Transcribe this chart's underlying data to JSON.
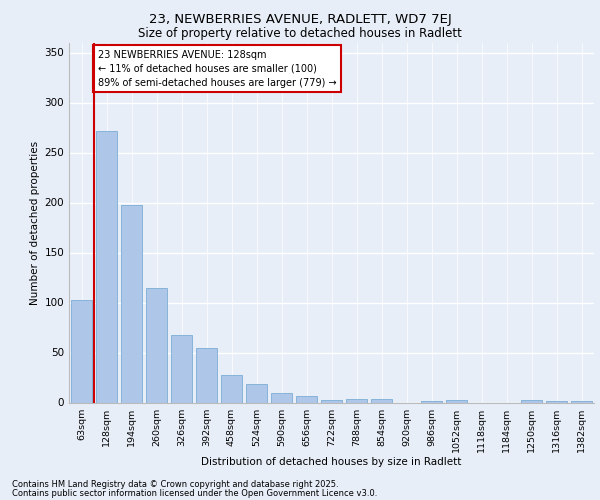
{
  "title1": "23, NEWBERRIES AVENUE, RADLETT, WD7 7EJ",
  "title2": "Size of property relative to detached houses in Radlett",
  "xlabel": "Distribution of detached houses by size in Radlett",
  "ylabel": "Number of detached properties",
  "categories": [
    "63sqm",
    "128sqm",
    "194sqm",
    "260sqm",
    "326sqm",
    "392sqm",
    "458sqm",
    "524sqm",
    "590sqm",
    "656sqm",
    "722sqm",
    "788sqm",
    "854sqm",
    "920sqm",
    "986sqm",
    "1052sqm",
    "1118sqm",
    "1184sqm",
    "1250sqm",
    "1316sqm",
    "1382sqm"
  ],
  "values": [
    103,
    272,
    198,
    115,
    68,
    55,
    28,
    19,
    10,
    7,
    3,
    4,
    4,
    0,
    2,
    3,
    0,
    0,
    3,
    2,
    2
  ],
  "vline_index": 1,
  "bar_color": "#aec6e8",
  "bar_edge_color": "#7aadd4",
  "vline_color": "#cc0000",
  "annotation_text": "23 NEWBERRIES AVENUE: 128sqm\n← 11% of detached houses are smaller (100)\n89% of semi-detached houses are larger (779) →",
  "annotation_box_facecolor": "#ffffff",
  "annotation_box_edgecolor": "#cc0000",
  "ylim": [
    0,
    360
  ],
  "yticks": [
    0,
    50,
    100,
    150,
    200,
    250,
    300,
    350
  ],
  "background_color": "#e8eef8",
  "grid_color": "#ffffff",
  "footer1": "Contains HM Land Registry data © Crown copyright and database right 2025.",
  "footer2": "Contains public sector information licensed under the Open Government Licence v3.0."
}
